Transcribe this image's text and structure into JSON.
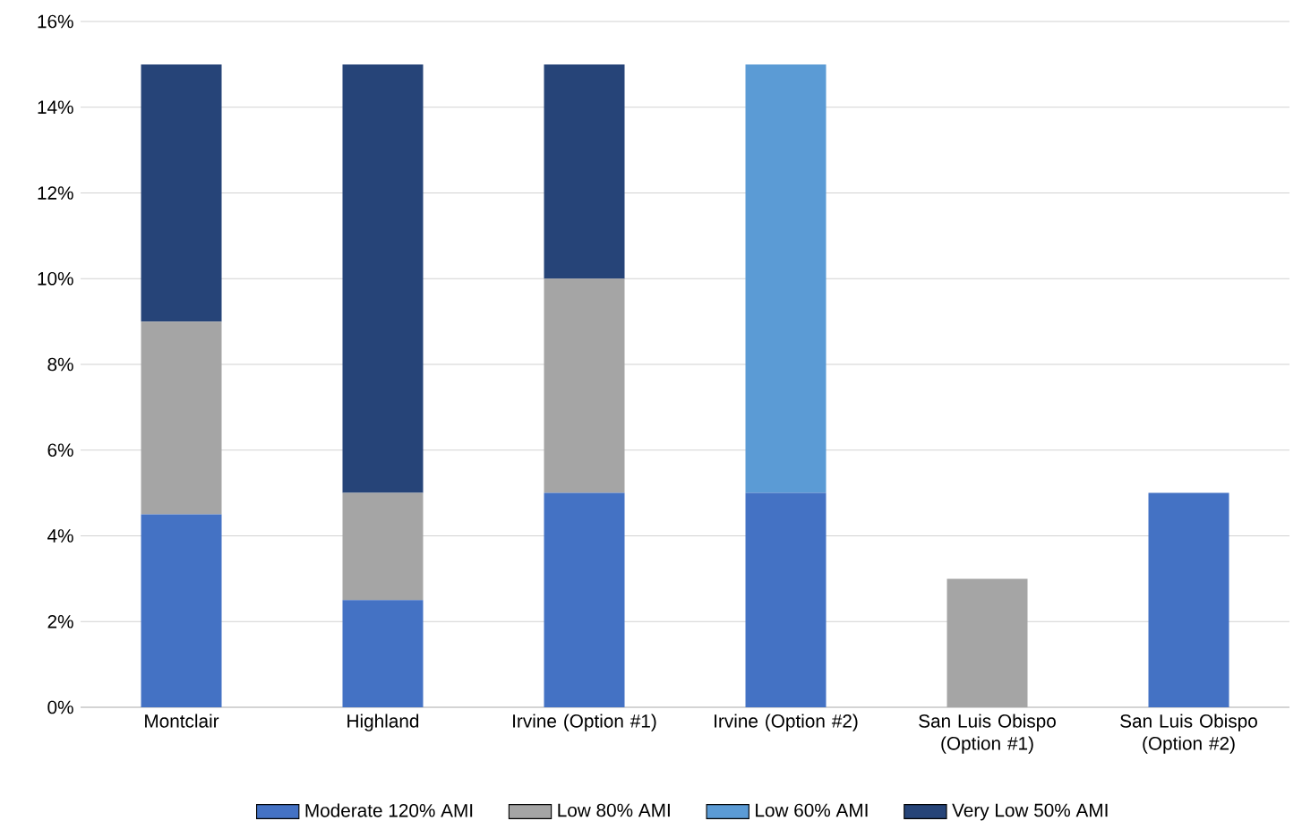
{
  "chart_data": {
    "type": "bar",
    "stacked": true,
    "categories": [
      "Montclair",
      "Highland",
      "Irvine (Option #1)",
      "Irvine (Option #2)",
      "San Luis Obispo (Option #1)",
      "San Luis Obispo (Option #2)"
    ],
    "series": [
      {
        "name": "Moderate 120% AMI",
        "color": "#4472c4",
        "values": [
          4.5,
          2.5,
          5,
          5,
          0,
          5
        ]
      },
      {
        "name": "Low 80% AMI",
        "color": "#a5a5a5",
        "values": [
          4.5,
          2.5,
          5,
          0,
          3,
          0
        ]
      },
      {
        "name": "Low 60% AMI",
        "color": "#5b9bd5",
        "values": [
          0,
          0,
          0,
          10,
          0,
          0
        ]
      },
      {
        "name": "Very Low 50% AMI",
        "color": "#264478",
        "values": [
          6,
          10,
          5,
          0,
          0,
          0
        ]
      }
    ],
    "ylim": [
      0,
      16
    ],
    "yticks": [
      {
        "value": 0,
        "label": "0%"
      },
      {
        "value": 2,
        "label": "2%"
      },
      {
        "value": 4,
        "label": "4%"
      },
      {
        "value": 6,
        "label": "6%"
      },
      {
        "value": 8,
        "label": "8%"
      },
      {
        "value": 10,
        "label": "10%"
      },
      {
        "value": 12,
        "label": "12%"
      },
      {
        "value": 14,
        "label": "14%"
      },
      {
        "value": 16,
        "label": "16%"
      }
    ],
    "grid": "y",
    "legend": "bottom"
  }
}
